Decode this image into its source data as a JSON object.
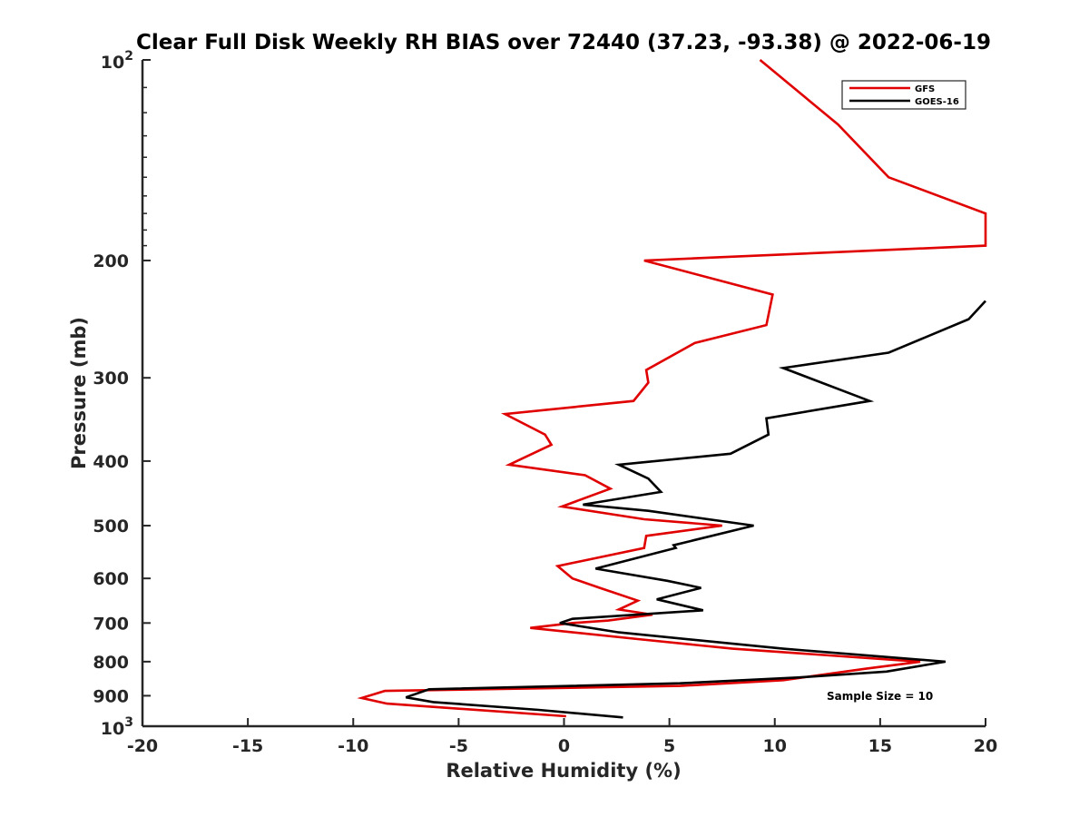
{
  "chart_data": {
    "type": "line",
    "title": "Clear Full Disk Weekly RH BIAS over 72440 (37.23, -93.38) @ 2022-06-19",
    "xlabel": "Relative Humidity (%)",
    "ylabel": "Pressure (mb)",
    "xlim": [
      -20,
      20
    ],
    "ylim": [
      1000,
      100
    ],
    "yscale": "log",
    "y_reversed": true,
    "xticks": [
      "-20",
      "-15",
      "-10",
      "-5",
      "0",
      "5",
      "10",
      "15",
      "20"
    ],
    "yticks": [
      {
        "value": 100,
        "label": "10",
        "sup": "2"
      },
      {
        "value": 200,
        "label": "200"
      },
      {
        "value": 300,
        "label": "300"
      },
      {
        "value": 400,
        "label": "400"
      },
      {
        "value": 500,
        "label": "500"
      },
      {
        "value": 600,
        "label": "600"
      },
      {
        "value": 700,
        "label": "700"
      },
      {
        "value": 800,
        "label": "800"
      },
      {
        "value": 900,
        "label": "900"
      },
      {
        "value": 1000,
        "label": "10",
        "sup": "3"
      }
    ],
    "legend_position": "top-right",
    "annotation": "Sample Size = 10",
    "series": [
      {
        "name": "GFS",
        "color": "#e00000",
        "points": [
          [
            9.3,
            100
          ],
          [
            13.0,
            125
          ],
          [
            15.4,
            150
          ],
          [
            20.0,
            170
          ],
          [
            20.0,
            190
          ],
          [
            3.8,
            200
          ],
          [
            9.9,
            225
          ],
          [
            9.6,
            250
          ],
          [
            6.2,
            266
          ],
          [
            3.9,
            292
          ],
          [
            4.0,
            305
          ],
          [
            3.3,
            325
          ],
          [
            -2.8,
            340
          ],
          [
            -0.9,
            365
          ],
          [
            -0.6,
            378
          ],
          [
            -2.6,
            405
          ],
          [
            1.0,
            420
          ],
          [
            2.2,
            440
          ],
          [
            -0.1,
            468
          ],
          [
            3.8,
            489
          ],
          [
            7.5,
            500
          ],
          [
            3.9,
            518
          ],
          [
            3.8,
            540
          ],
          [
            -0.3,
            575
          ],
          [
            0.4,
            600
          ],
          [
            1.7,
            620
          ],
          [
            3.5,
            648
          ],
          [
            2.6,
            668
          ],
          [
            4.2,
            680
          ],
          [
            2.1,
            694
          ],
          [
            0.4,
            700
          ],
          [
            -1.6,
            712
          ],
          [
            3.5,
            740
          ],
          [
            8.0,
            765
          ],
          [
            16.9,
            800
          ],
          [
            14.3,
            820
          ],
          [
            10.4,
            853
          ],
          [
            5.5,
            870
          ],
          [
            -8.5,
            885
          ],
          [
            -9.6,
            907
          ],
          [
            -8.4,
            925
          ],
          [
            0.1,
            966
          ]
        ]
      },
      {
        "name": "GOES-16",
        "color": "#000000",
        "points": [
          [
            20.0,
            230
          ],
          [
            19.2,
            245
          ],
          [
            15.4,
            275
          ],
          [
            10.4,
            290
          ],
          [
            14.5,
            325
          ],
          [
            9.6,
            345
          ],
          [
            9.7,
            365
          ],
          [
            7.9,
            390
          ],
          [
            2.6,
            405
          ],
          [
            4.0,
            425
          ],
          [
            4.6,
            445
          ],
          [
            0.9,
            465
          ],
          [
            4.0,
            475
          ],
          [
            9.0,
            500
          ],
          [
            5.2,
            535
          ],
          [
            5.3,
            540
          ],
          [
            1.5,
            580
          ],
          [
            4.9,
            605
          ],
          [
            6.5,
            620
          ],
          [
            4.4,
            645
          ],
          [
            6.6,
            670
          ],
          [
            0.4,
            690
          ],
          [
            -0.2,
            700
          ],
          [
            2.6,
            723
          ],
          [
            10.4,
            765
          ],
          [
            18.1,
            800
          ],
          [
            15.3,
            828
          ],
          [
            11.1,
            845
          ],
          [
            5.5,
            862
          ],
          [
            -6.4,
            880
          ],
          [
            -7.5,
            905
          ],
          [
            -6.2,
            920
          ],
          [
            -1.2,
            945
          ],
          [
            2.8,
            970
          ]
        ]
      }
    ]
  }
}
